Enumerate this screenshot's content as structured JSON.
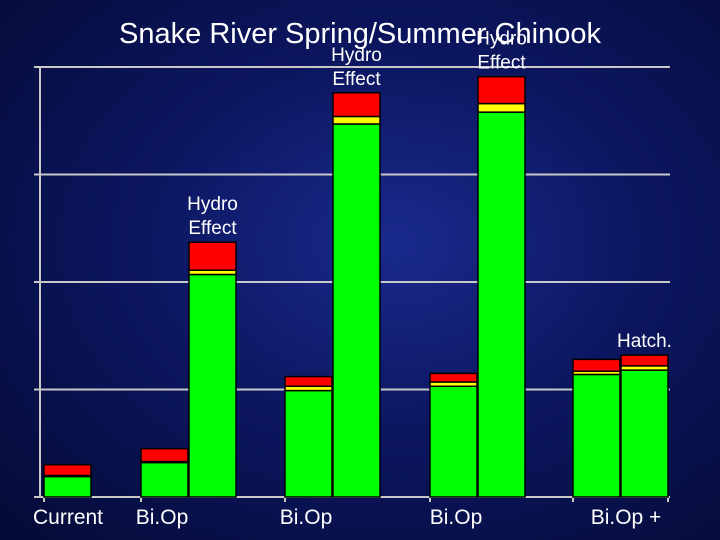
{
  "chart_data": {
    "type": "bar",
    "stacked": true,
    "title": "Snake River Spring/Summer Chinook",
    "xlabel": "",
    "ylabel": "",
    "ylim": [
      0,
      4
    ],
    "grid": true,
    "categories": [
      "Current",
      "Bi.Op",
      "Bi.Op",
      "Bi.Op",
      "Bi.Op +"
    ],
    "category_bars": [
      [
        0
      ],
      [
        1,
        2
      ],
      [
        3,
        4
      ],
      [
        5,
        6
      ],
      [
        7,
        8
      ]
    ],
    "bars": [
      {
        "green": 0.19,
        "yellow": 0.01,
        "red": 0.1
      },
      {
        "green": 0.32,
        "yellow": 0.01,
        "red": 0.12
      },
      {
        "green": 2.07,
        "yellow": 0.04,
        "red": 0.26
      },
      {
        "green": 0.99,
        "yellow": 0.04,
        "red": 0.09
      },
      {
        "green": 3.47,
        "yellow": 0.07,
        "red": 0.22
      },
      {
        "green": 1.03,
        "yellow": 0.04,
        "red": 0.08
      },
      {
        "green": 3.58,
        "yellow": 0.08,
        "red": 0.25
      },
      {
        "green": 1.14,
        "yellow": 0.03,
        "red": 0.11
      },
      {
        "green": 1.18,
        "yellow": 0.04,
        "red": 0.1
      }
    ],
    "annotations": [
      {
        "bar": 2,
        "lines": [
          "Hydro",
          "Effect"
        ]
      },
      {
        "bar": 4,
        "lines": [
          "Hydro",
          "Effect"
        ]
      },
      {
        "bar": 6,
        "lines": [
          "Hydro",
          "Effect"
        ]
      },
      {
        "bar": 8,
        "lines": [
          "Hatch."
        ]
      }
    ],
    "colors": {
      "green": "#00ff00",
      "yellow": "#ffff00",
      "red": "#ff0000",
      "grid": "#c8c8c8",
      "axis": "#c8c8c8"
    }
  }
}
